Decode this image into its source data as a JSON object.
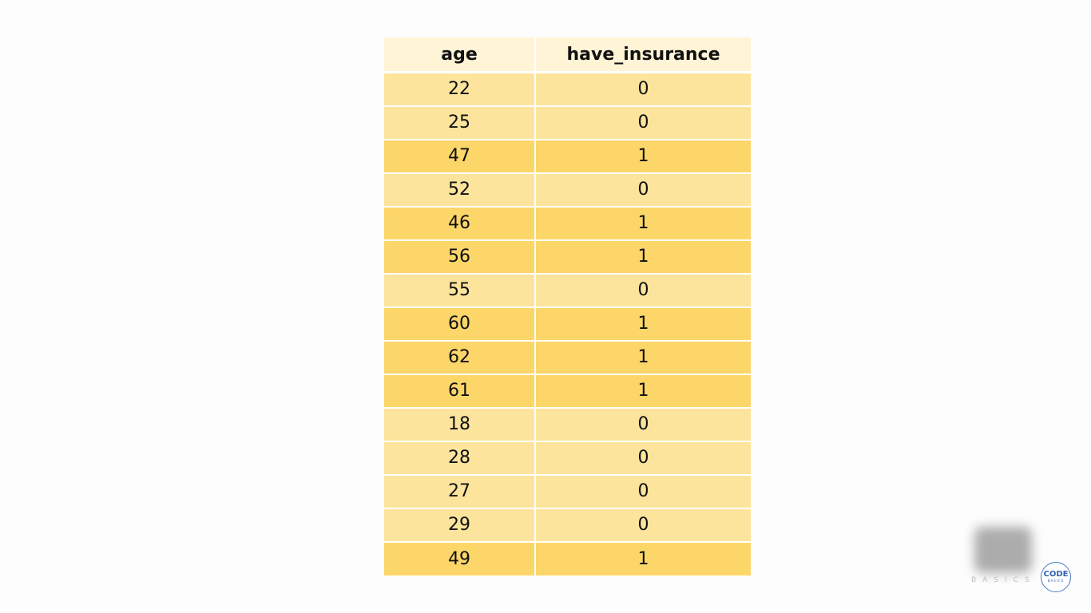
{
  "table": {
    "columns": [
      "age",
      "have_insurance"
    ],
    "rows": [
      {
        "age": "22",
        "have_insurance": "0"
      },
      {
        "age": "25",
        "have_insurance": "0"
      },
      {
        "age": "47",
        "have_insurance": "1"
      },
      {
        "age": "52",
        "have_insurance": "0"
      },
      {
        "age": "46",
        "have_insurance": "1"
      },
      {
        "age": "56",
        "have_insurance": "1"
      },
      {
        "age": "55",
        "have_insurance": "0"
      },
      {
        "age": "60",
        "have_insurance": "1"
      },
      {
        "age": "62",
        "have_insurance": "1"
      },
      {
        "age": "61",
        "have_insurance": "1"
      },
      {
        "age": "18",
        "have_insurance": "0"
      },
      {
        "age": "28",
        "have_insurance": "0"
      },
      {
        "age": "27",
        "have_insurance": "0"
      },
      {
        "age": "29",
        "have_insurance": "0"
      },
      {
        "age": "49",
        "have_insurance": "1"
      }
    ]
  },
  "colors": {
    "header_bg": "#fff4d6",
    "row_value_0_bg": "#fce49c",
    "row_value_1_bg": "#fcd669",
    "text": "#111111"
  },
  "watermark": {
    "text": "BASICS",
    "logo_main": "CODE",
    "logo_sub": "BASICS"
  }
}
